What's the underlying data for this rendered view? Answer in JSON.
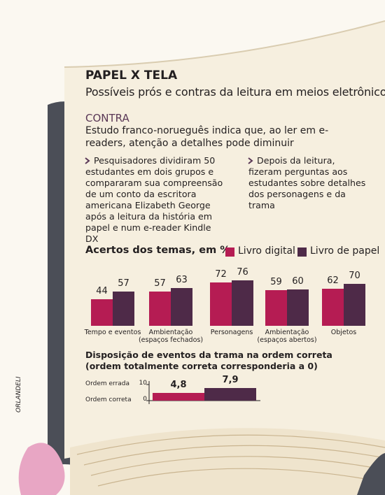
{
  "header": {
    "title": "PAPEL X TELA",
    "subtitle": "Possíveis prós e contras da leitura em meios eletrônicos"
  },
  "contra": {
    "label": "CONTRA",
    "text": "Estudo franco-norueguês indica que, ao ler em e-readers, atenção a detalhes pode diminuir"
  },
  "bullets": [
    "Pesquisadores dividiram 50 estudantes em dois grupos e compararam sua compreensão de um conto da escritora americana Elizabeth George após a leitura da história em papel e num e-reader Kindle DX",
    "Depois da leitura, fizeram perguntas aos estudantes sobre detalhes dos personagens e da trama"
  ],
  "credit": "ORLANDELI",
  "chart_data": [
    {
      "type": "bar",
      "title": "Acertos dos temas, em %",
      "categories": [
        "Tempo e eventos",
        "Ambientação\n(espaços fechados)",
        "Personagens",
        "Ambientação\n(espaços abertos)",
        "Objetos"
      ],
      "series": [
        {
          "name": "Livro digital",
          "color": "#b51c53",
          "values": [
            44,
            57,
            72,
            59,
            62
          ]
        },
        {
          "name": "Livro de papel",
          "color": "#4e2a48",
          "values": [
            57,
            63,
            76,
            60,
            70
          ]
        }
      ]
    },
    {
      "type": "bar",
      "title": "Disposição de eventos da trama na ordem correta (ordem totalmente correta corresponderia a 0)",
      "categories": [
        null,
        null
      ],
      "values": [
        4.8,
        7.9
      ],
      "value_labels": [
        "4,8",
        "7,9"
      ],
      "colors": [
        "#b51c53",
        "#4e2a48"
      ],
      "ylim": [
        0,
        10
      ],
      "yticks": [
        0,
        10
      ],
      "ytick_captions": [
        "Ordem correta",
        "Ordem errada"
      ]
    }
  ]
}
